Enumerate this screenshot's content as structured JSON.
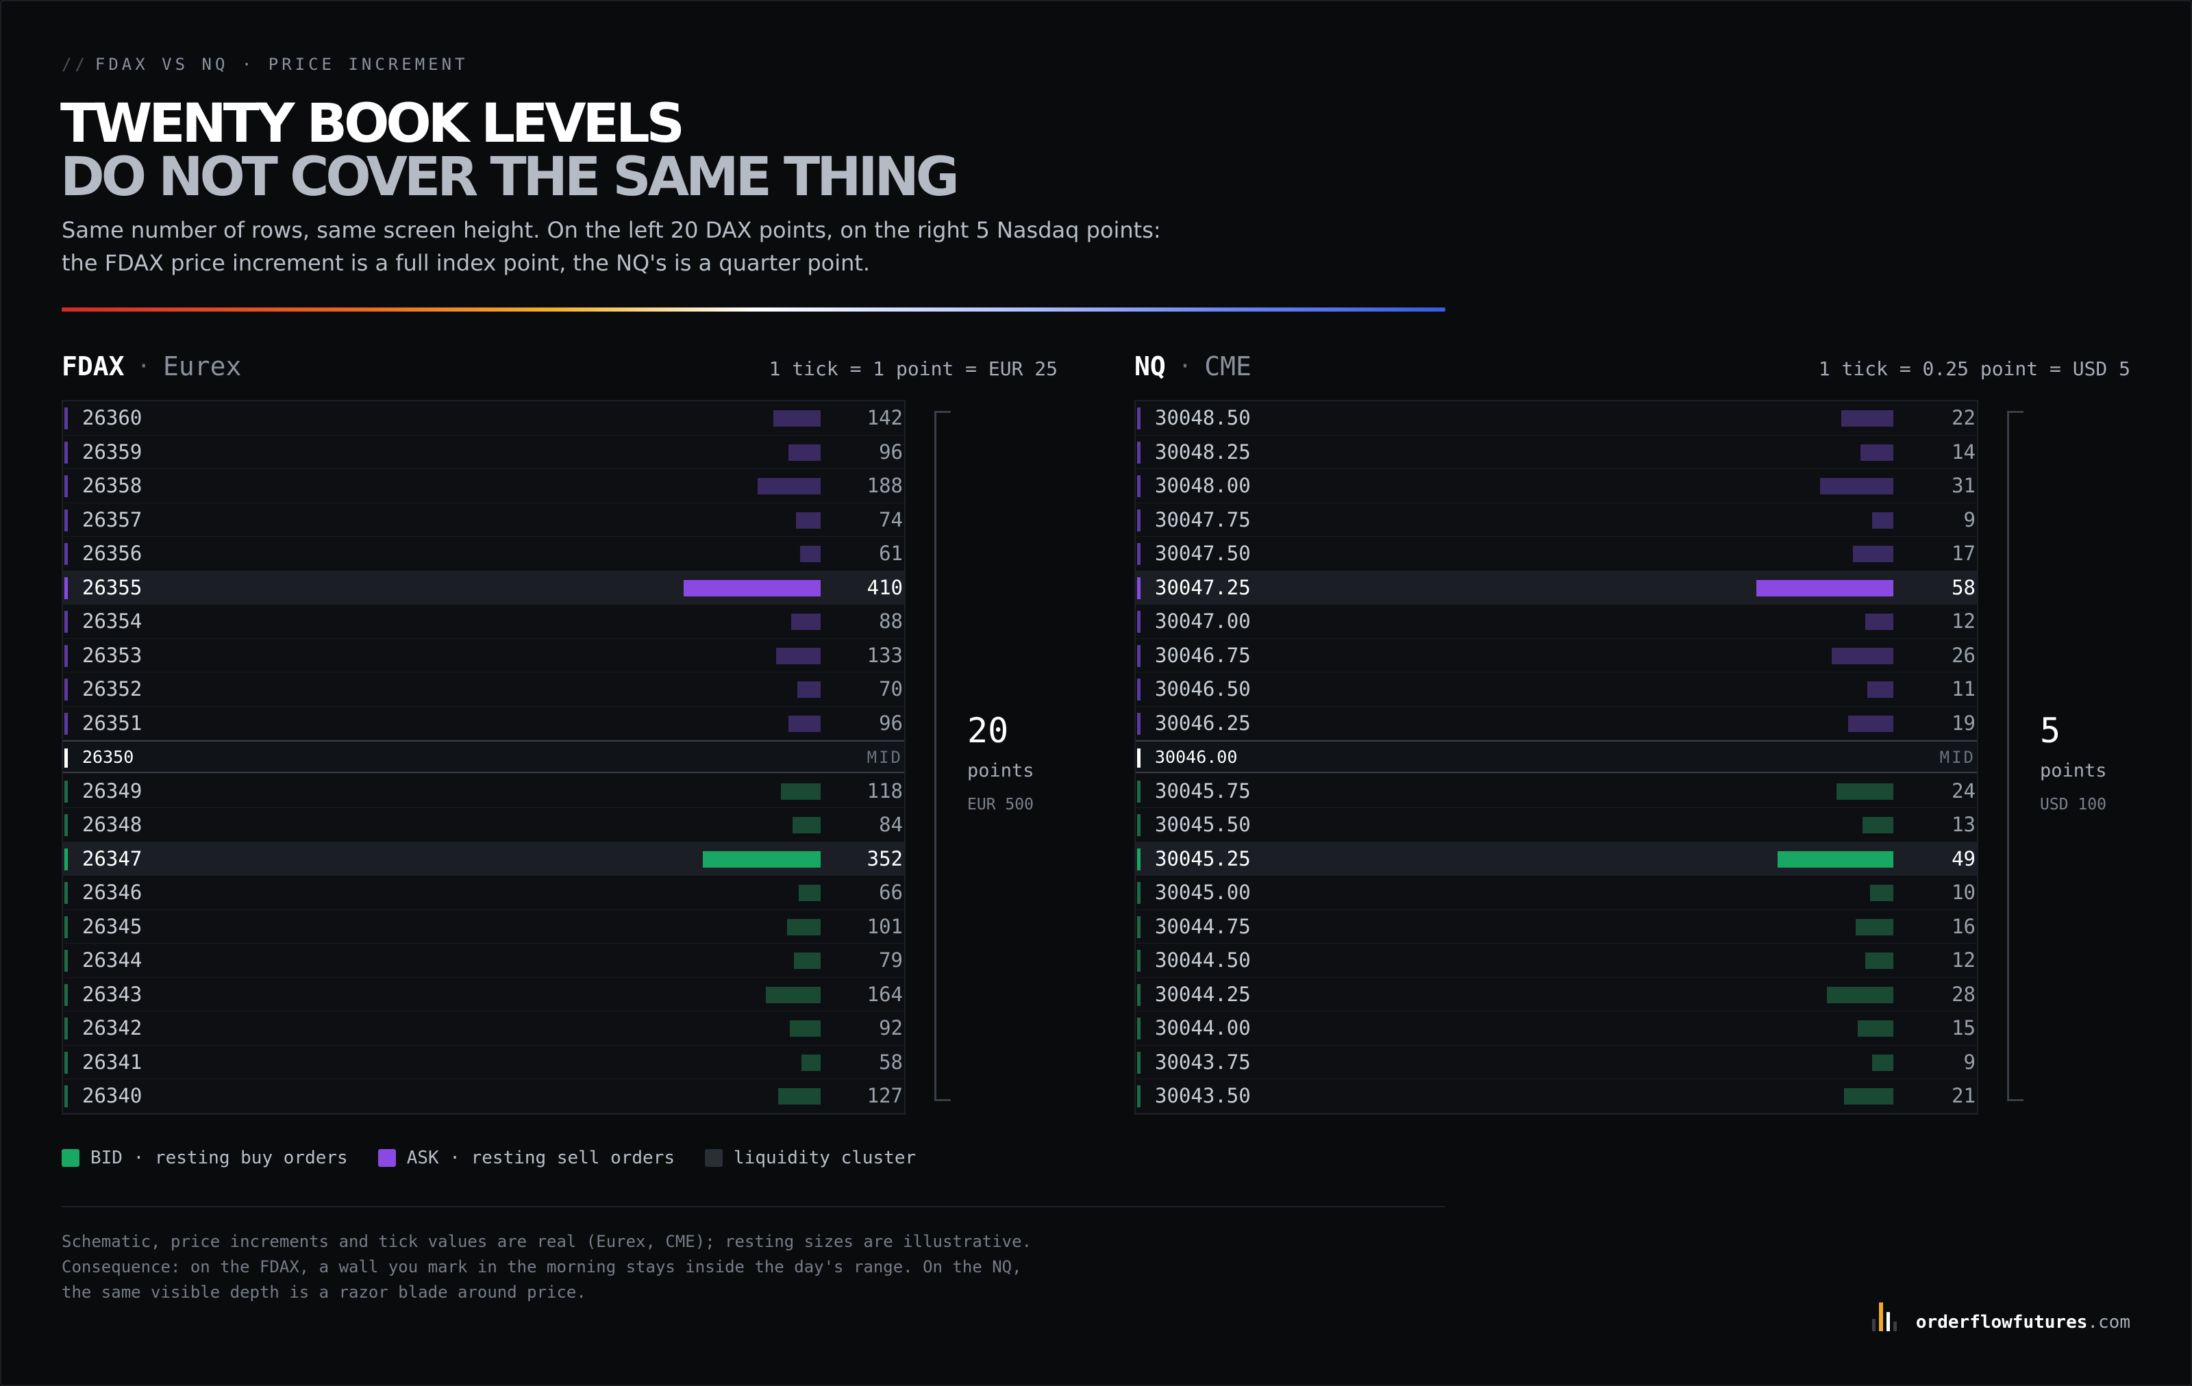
{
  "header": {
    "kicker_prefix": "//",
    "kicker": "FDAX VS NQ · PRICE INCREMENT",
    "title_line1": "TWENTY BOOK LEVELS",
    "title_line2": "DO NOT COVER THE SAME THING",
    "subtitle": "Same number of rows, same screen height. On the left 20 DAX points, on the right 5 Nasdaq points: the FDAX price increment is a full index point, the NQ's is a quarter point."
  },
  "colors": {
    "bid": "#18a864",
    "ask": "#8a4ae2",
    "cluster": "#2a2e36",
    "background": "#0a0b0d"
  },
  "panels": [
    {
      "symbol": "FDAX",
      "exchange": "Eurex",
      "separator": "·",
      "tick_spec": "1 tick = 1 point = EUR 25",
      "mid_label": "MID",
      "span_points": "20",
      "span_unit": "points",
      "span_value": "EUR 500",
      "max_size": 410,
      "asks": [
        {
          "price": "26360",
          "size": "142",
          "size_value": 142,
          "cluster": false
        },
        {
          "price": "26359",
          "size": "96",
          "size_value": 96,
          "cluster": false
        },
        {
          "price": "26358",
          "size": "188",
          "size_value": 188,
          "cluster": false
        },
        {
          "price": "26357",
          "size": "74",
          "size_value": 74,
          "cluster": false
        },
        {
          "price": "26356",
          "size": "61",
          "size_value": 61,
          "cluster": false
        },
        {
          "price": "26355",
          "size": "410",
          "size_value": 410,
          "cluster": true
        },
        {
          "price": "26354",
          "size": "88",
          "size_value": 88,
          "cluster": false
        },
        {
          "price": "26353",
          "size": "133",
          "size_value": 133,
          "cluster": false
        },
        {
          "price": "26352",
          "size": "70",
          "size_value": 70,
          "cluster": false
        },
        {
          "price": "26351",
          "size": "96",
          "size_value": 96,
          "cluster": false
        }
      ],
      "mid_price": "26350",
      "bids": [
        {
          "price": "26349",
          "size": "118",
          "size_value": 118,
          "cluster": false
        },
        {
          "price": "26348",
          "size": "84",
          "size_value": 84,
          "cluster": false
        },
        {
          "price": "26347",
          "size": "352",
          "size_value": 352,
          "cluster": true
        },
        {
          "price": "26346",
          "size": "66",
          "size_value": 66,
          "cluster": false
        },
        {
          "price": "26345",
          "size": "101",
          "size_value": 101,
          "cluster": false
        },
        {
          "price": "26344",
          "size": "79",
          "size_value": 79,
          "cluster": false
        },
        {
          "price": "26343",
          "size": "164",
          "size_value": 164,
          "cluster": false
        },
        {
          "price": "26342",
          "size": "92",
          "size_value": 92,
          "cluster": false
        },
        {
          "price": "26341",
          "size": "58",
          "size_value": 58,
          "cluster": false
        },
        {
          "price": "26340",
          "size": "127",
          "size_value": 127,
          "cluster": false
        }
      ]
    },
    {
      "symbol": "NQ",
      "exchange": "CME",
      "separator": "·",
      "tick_spec": "1 tick = 0.25 point = USD 5",
      "mid_label": "MID",
      "span_points": "5",
      "span_unit": "points",
      "span_value": "USD 100",
      "max_size": 58,
      "asks": [
        {
          "price": "30048.50",
          "size": "22",
          "size_value": 22,
          "cluster": false
        },
        {
          "price": "30048.25",
          "size": "14",
          "size_value": 14,
          "cluster": false
        },
        {
          "price": "30048.00",
          "size": "31",
          "size_value": 31,
          "cluster": false
        },
        {
          "price": "30047.75",
          "size": "9",
          "size_value": 9,
          "cluster": false
        },
        {
          "price": "30047.50",
          "size": "17",
          "size_value": 17,
          "cluster": false
        },
        {
          "price": "30047.25",
          "size": "58",
          "size_value": 58,
          "cluster": true
        },
        {
          "price": "30047.00",
          "size": "12",
          "size_value": 12,
          "cluster": false
        },
        {
          "price": "30046.75",
          "size": "26",
          "size_value": 26,
          "cluster": false
        },
        {
          "price": "30046.50",
          "size": "11",
          "size_value": 11,
          "cluster": false
        },
        {
          "price": "30046.25",
          "size": "19",
          "size_value": 19,
          "cluster": false
        }
      ],
      "mid_price": "30046.00",
      "bids": [
        {
          "price": "30045.75",
          "size": "24",
          "size_value": 24,
          "cluster": false
        },
        {
          "price": "30045.50",
          "size": "13",
          "size_value": 13,
          "cluster": false
        },
        {
          "price": "30045.25",
          "size": "49",
          "size_value": 49,
          "cluster": true
        },
        {
          "price": "30045.00",
          "size": "10",
          "size_value": 10,
          "cluster": false
        },
        {
          "price": "30044.75",
          "size": "16",
          "size_value": 16,
          "cluster": false
        },
        {
          "price": "30044.50",
          "size": "12",
          "size_value": 12,
          "cluster": false
        },
        {
          "price": "30044.25",
          "size": "28",
          "size_value": 28,
          "cluster": false
        },
        {
          "price": "30044.00",
          "size": "15",
          "size_value": 15,
          "cluster": false
        },
        {
          "price": "30043.75",
          "size": "9",
          "size_value": 9,
          "cluster": false
        },
        {
          "price": "30043.50",
          "size": "21",
          "size_value": 21,
          "cluster": false
        }
      ]
    }
  ],
  "legend": [
    {
      "label": "BID · resting buy orders",
      "color": "#18a864"
    },
    {
      "label": "ASK · resting sell orders",
      "color": "#8a4ae2"
    },
    {
      "label": "liquidity cluster",
      "color": "#2a2e36"
    }
  ],
  "footer": {
    "note_line1": "Schematic, price increments and tick values are real (Eurex, CME); resting sizes are illustrative.",
    "note_line2": "Consequence: on the FDAX, a wall you mark in the morning stays inside the day's range. On the NQ, the same visible depth is a razor blade around price.",
    "brand_name": "orderflowfutures",
    "brand_tld": ".com"
  }
}
